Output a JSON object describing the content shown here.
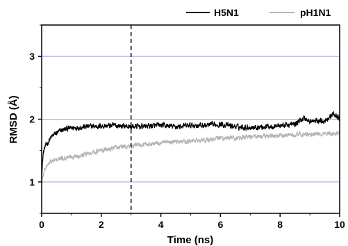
{
  "chart_data": {
    "type": "line",
    "xlabel": "Time (ns)",
    "ylabel": "RMSD (Å)",
    "xlim": [
      0,
      10
    ],
    "ylim": [
      0.5,
      3.5
    ],
    "x_ticks": [
      0,
      2,
      4,
      6,
      8,
      10
    ],
    "y_ticks": [
      1,
      2,
      3
    ],
    "x_tick_labels": [
      "0",
      "2",
      "4",
      "6",
      "8",
      "10"
    ],
    "y_tick_labels": [
      "1",
      "2",
      "3"
    ],
    "gridlines_y": [
      1,
      2,
      3
    ],
    "grid_color": "#9a9ae6",
    "annotation_vline_x": 3,
    "legend_position": "top-right",
    "series": [
      {
        "name": "H5N1",
        "color": "#000000",
        "x": [
          0,
          0.05,
          0.1,
          0.2,
          0.3,
          0.4,
          0.5,
          0.7,
          1,
          1.5,
          2,
          2.5,
          3,
          3.5,
          4,
          4.5,
          5,
          5.5,
          6,
          6.5,
          7,
          7.5,
          8,
          8.5,
          8.8,
          9,
          9.5,
          9.8,
          10
        ],
        "values": [
          1.1,
          1.45,
          1.55,
          1.62,
          1.7,
          1.75,
          1.78,
          1.83,
          1.86,
          1.88,
          1.89,
          1.9,
          1.88,
          1.89,
          1.9,
          1.88,
          1.9,
          1.9,
          1.92,
          1.88,
          1.87,
          1.88,
          1.9,
          1.92,
          2.02,
          1.96,
          1.98,
          2.08,
          2.02
        ]
      },
      {
        "name": "pH1N1",
        "color": "#b4b4b4",
        "x": [
          0,
          0.05,
          0.1,
          0.2,
          0.3,
          0.5,
          0.7,
          1,
          1.5,
          2,
          2.5,
          3,
          3.5,
          4,
          4.5,
          5,
          5.5,
          6,
          6.5,
          7,
          7.5,
          8,
          8.5,
          9,
          9.5,
          10
        ],
        "values": [
          0.98,
          1.1,
          1.2,
          1.28,
          1.32,
          1.35,
          1.38,
          1.4,
          1.45,
          1.5,
          1.55,
          1.57,
          1.6,
          1.62,
          1.64,
          1.65,
          1.66,
          1.7,
          1.7,
          1.72,
          1.73,
          1.74,
          1.76,
          1.75,
          1.77,
          1.77
        ]
      }
    ]
  }
}
